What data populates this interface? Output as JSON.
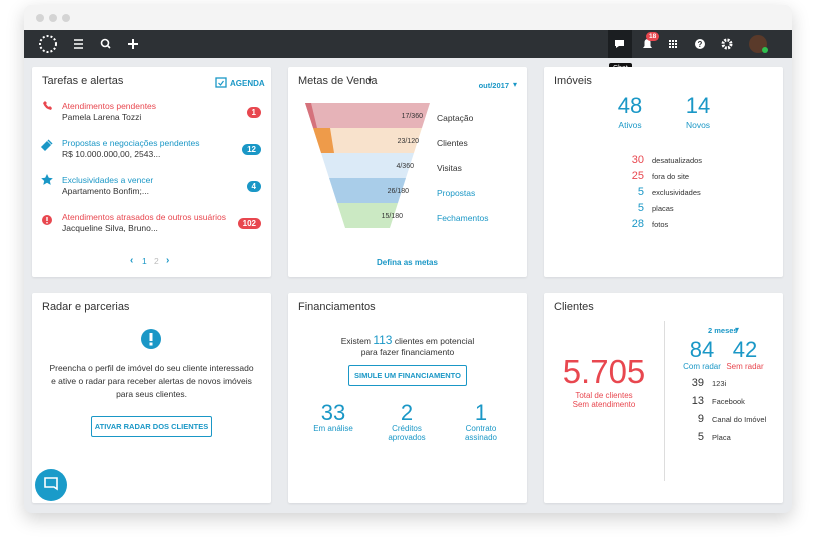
{
  "navbar": {
    "tooltip": "Chat",
    "notification_count": "18"
  },
  "cards": [
    {
      "title": "Tarefas e alertas",
      "action": "AGENDA",
      "items": [
        {
          "title": "Atendimentos pendentes",
          "subtitle": "Pamela Larena Tozzi",
          "count": "1"
        },
        {
          "title": "Propostas e negociações pendentes",
          "subtitle": "R$ 10.000.000,00, 2543...",
          "count": "12"
        },
        {
          "title": "Exclusividades a vencer",
          "subtitle": "Apartamento Bonfim;...",
          "count": "4"
        },
        {
          "title": "Atendimentos atrasados de outros usuários",
          "subtitle": "Jacqueline Silva, Bruno...",
          "count": "102"
        }
      ],
      "pagination": [
        "1",
        "2"
      ]
    },
    {
      "title": "Metas de Venda",
      "period": "out/2017",
      "stages": [
        {
          "label": "Captação",
          "progress": "17/360"
        },
        {
          "label": "Clientes",
          "progress": "23/120"
        },
        {
          "label": "Visitas",
          "progress": "4/360"
        },
        {
          "label": "Propostas",
          "progress": "26/180"
        },
        {
          "label": "Fechamentos",
          "progress": "15/180"
        }
      ],
      "link": "Defina as metas"
    },
    {
      "title": "Imóveis",
      "stats": [
        {
          "value": "48",
          "label": "Ativos"
        },
        {
          "value": "14",
          "label": "Novos"
        }
      ],
      "details": [
        {
          "value": "30",
          "label": "desatualizados"
        },
        {
          "value": "25",
          "label": "fora do site"
        },
        {
          "value": "5",
          "label": "exclusividades"
        },
        {
          "value": "5",
          "label": "placas"
        },
        {
          "value": "28",
          "label": "fotos"
        }
      ]
    },
    {
      "title": "Radar e parcerias",
      "text": [
        "Preencha o perfil de imóvel do seu cliente interessado",
        "e ative o radar para receber alertas de novos imóveis",
        "para seus clientes."
      ],
      "button": "ATIVAR RADAR DOS CLIENTES"
    },
    {
      "title": "Financiamentos",
      "text_before": "Existem",
      "highlight": "113",
      "text_after": "clientes em potencial",
      "text_line2": "para fazer financiamento",
      "button": "SIMULE UM FINANCIAMENTO",
      "stats": [
        {
          "value": "33",
          "label": [
            "Em análise"
          ]
        },
        {
          "value": "2",
          "label": [
            "Créditos",
            "aprovados"
          ]
        },
        {
          "value": "1",
          "label": [
            "Contrato",
            "assinado"
          ]
        }
      ]
    },
    {
      "title": "Clientes",
      "total": "5.705",
      "total_label": [
        "Total de clientes",
        "Sem atendimento"
      ],
      "period": "2 meses",
      "radar": [
        {
          "value": "84",
          "label": "Com radar"
        },
        {
          "value": "42",
          "label": "Sem radar"
        }
      ],
      "sources": [
        {
          "value": "39",
          "label": "123i"
        },
        {
          "value": "13",
          "label": "Facebook"
        },
        {
          "value": "9",
          "label": "Canal do Imóvel"
        },
        {
          "value": "5",
          "label": "Placa"
        }
      ]
    }
  ]
}
